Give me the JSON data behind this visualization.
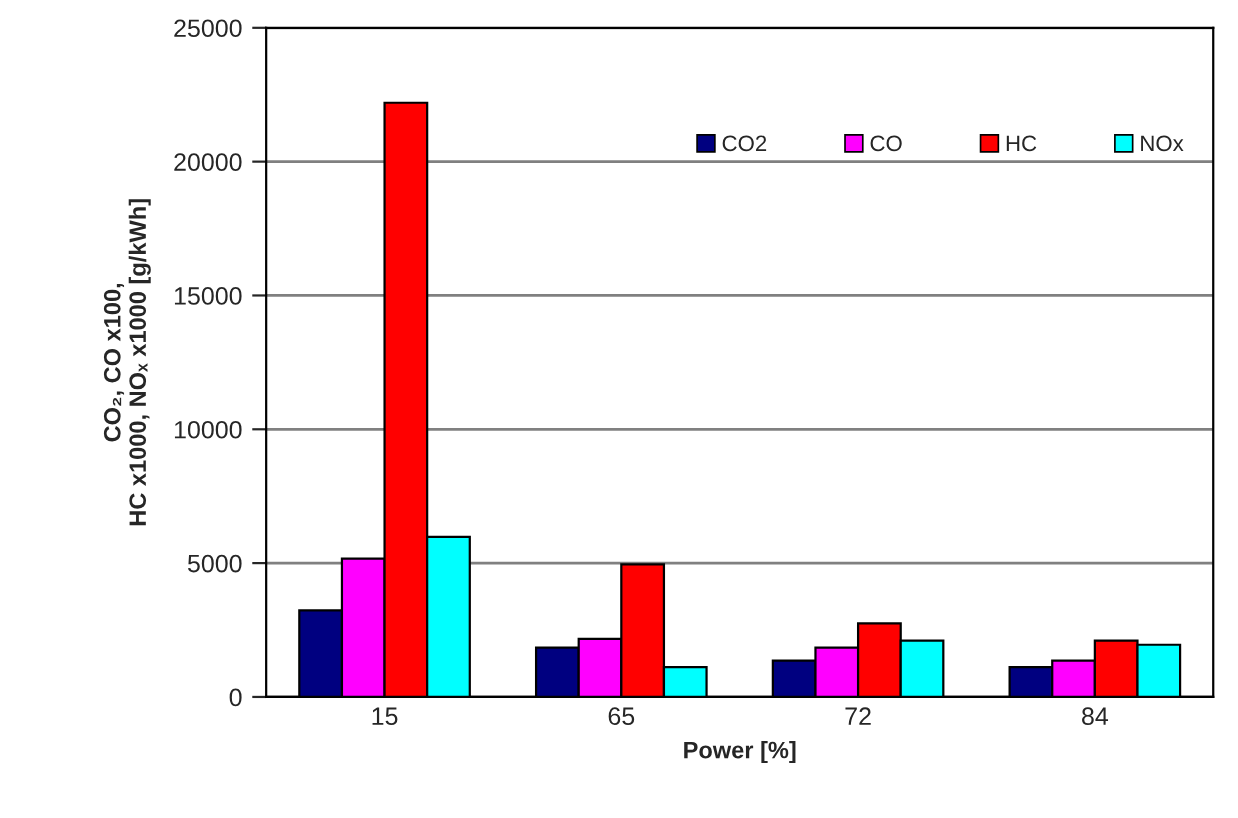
{
  "chart_data": {
    "type": "bar",
    "xlabel": "Power [%]",
    "ylabel": "CO₂, CO x100,\nHC x1000, NOₓ x1000 [g/kWh]",
    "categories": [
      "15",
      "65",
      "72",
      "84"
    ],
    "series": [
      {
        "name": "CO2",
        "color": "#000080",
        "values": [
          3230,
          1840,
          1360,
          1110
        ]
      },
      {
        "name": "CO",
        "color": "#ff00ff",
        "values": [
          5170,
          2170,
          1840,
          1360
        ]
      },
      {
        "name": "HC",
        "color": "#ff0000",
        "values": [
          22200,
          4950,
          2750,
          2100
        ]
      },
      {
        "name": "NOx",
        "color": "#00ffff",
        "values": [
          5980,
          1110,
          2100,
          1950
        ]
      }
    ],
    "ylim": [
      0,
      25000
    ],
    "yticks": [
      0,
      5000,
      10000,
      15000,
      20000,
      25000
    ],
    "grid": "y",
    "legend": "top right"
  }
}
